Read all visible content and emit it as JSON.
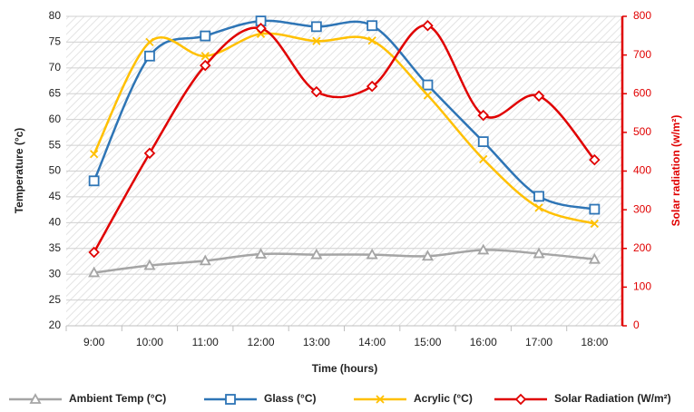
{
  "chart_data": {
    "type": "line",
    "categories": [
      "9:00",
      "10:00",
      "11:00",
      "12:00",
      "13:00",
      "14:00",
      "15:00",
      "16:00",
      "17:00",
      "18:00"
    ],
    "series": [
      {
        "name": "Ambient Temp (°C)",
        "color": "#a5a5a5",
        "marker": "triangle",
        "values": [
          30.3,
          31.7,
          32.6,
          33.9,
          33.8,
          33.8,
          33.5,
          34.7,
          34.0,
          32.9
        ]
      },
      {
        "name": "Glass (°C)",
        "color": "#2e75b6",
        "marker": "square",
        "values": [
          48.1,
          72.3,
          76.2,
          79.1,
          78.0,
          78.2,
          66.7,
          55.7,
          45.1,
          42.6
        ]
      },
      {
        "name": "Acrylic (°C)",
        "color": "#ffc000",
        "marker": "x",
        "values": [
          53.3,
          75.0,
          72.3,
          76.6,
          75.2,
          75.3,
          64.7,
          52.3,
          42.9,
          39.8
        ]
      },
      {
        "name": "Solar Radiation (W/m²)",
        "color": "#e00000",
        "marker": "diamond",
        "axis": "y2",
        "values": [
          190,
          446,
          673,
          769,
          605,
          619,
          776,
          544,
          594,
          429
        ]
      }
    ],
    "xlabel": "Time (hours)",
    "ylabel": "Temperature (°c)",
    "y2label": "Solar radiation (w/m²)",
    "ylim": [
      20,
      80
    ],
    "yticks": [
      20,
      25,
      30,
      35,
      40,
      45,
      50,
      55,
      60,
      65,
      70,
      75,
      80
    ],
    "y2lim": [
      0,
      800
    ],
    "y2ticks": [
      0,
      100,
      200,
      300,
      400,
      500,
      600,
      700,
      800
    ],
    "y2color": "#e00000",
    "grid": true,
    "smooth": true,
    "legend": "bottom"
  }
}
